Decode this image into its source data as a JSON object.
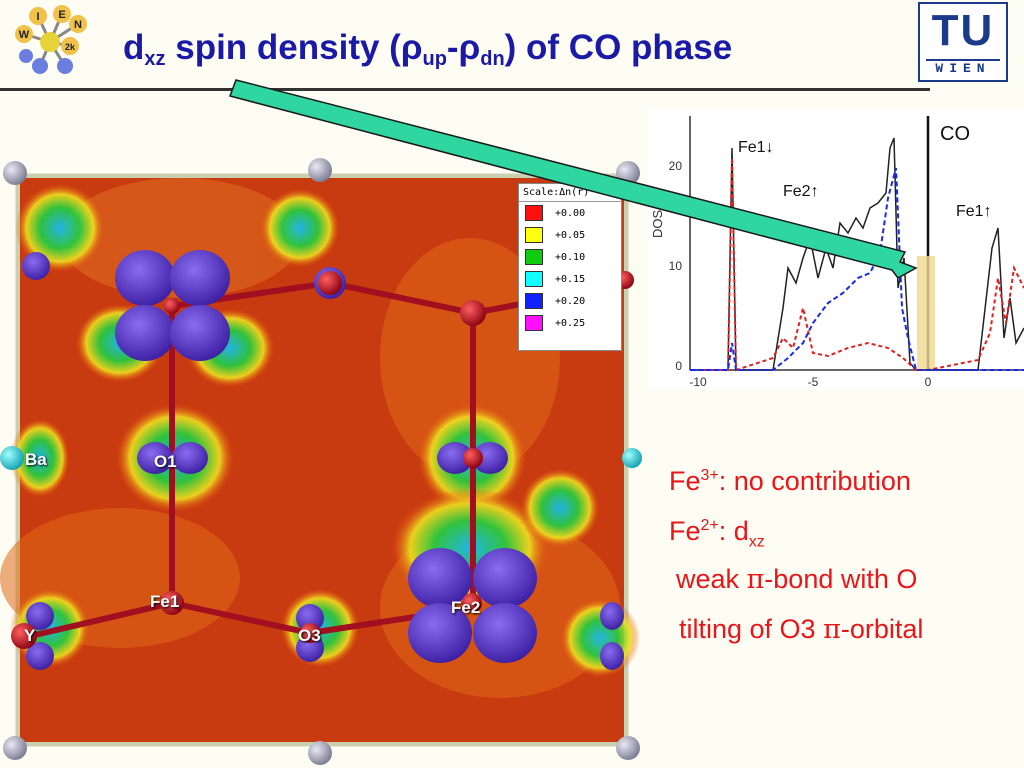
{
  "header": {
    "title_d": "d",
    "title_sub_xz": "xz",
    "title_mid": " spin density (",
    "title_rho1": "ρ",
    "title_sub_up": "up",
    "title_dash": "-",
    "title_rho2": "ρ",
    "title_sub_dn": "dn",
    "title_end": ") of CO phase",
    "tu_logo": "TU",
    "tu_wien": "WIEN"
  },
  "logo_left": {
    "letters": [
      "I",
      "E",
      "N",
      "W",
      "2k"
    ]
  },
  "crystal": {
    "atom_labels": [
      "Ba",
      "O1",
      "Fe1",
      "Y",
      "O3",
      "Fe2"
    ]
  },
  "scale": {
    "title": "Scale:Δn(r)",
    "entries": [
      {
        "color": "#ff1010",
        "label": "+0.00"
      },
      {
        "color": "#ffff10",
        "label": "+0.05"
      },
      {
        "color": "#10cc10",
        "label": "+0.10"
      },
      {
        "color": "#10ffff",
        "label": "+0.15"
      },
      {
        "color": "#1020ff",
        "label": "+0.20"
      },
      {
        "color": "#ff10ff",
        "label": "+0.25"
      }
    ]
  },
  "dos_plot": {
    "ylabel": "DOS",
    "yticks": [
      "20",
      "10",
      "0"
    ],
    "xticks": [
      "-10",
      "-5",
      "0"
    ],
    "label_fe1_down": "Fe1↓",
    "label_fe2_up": "Fe2↑",
    "label_co": "CO",
    "label_fe1_up": "Fe1↑"
  },
  "bullets": {
    "line1_pre": "Fe",
    "line1_sup": "3+",
    "line1_post": ": no contribution",
    "line2_pre": "Fe",
    "line2_sup": "2+",
    "line2_mid": ": d",
    "line2_sub": "xz",
    "line3_pre": "weak ",
    "line3_pi": "π",
    "line3_post": "-bond with O",
    "line4_pre": "tilting of O3 ",
    "line4_pi": "π",
    "line4_post": "-orbital"
  },
  "colors": {
    "title": "#1a1aa6",
    "bullet_text": "#e8161a",
    "arrow": "#2fd6a0",
    "tu_blue": "#1a3a8a"
  }
}
